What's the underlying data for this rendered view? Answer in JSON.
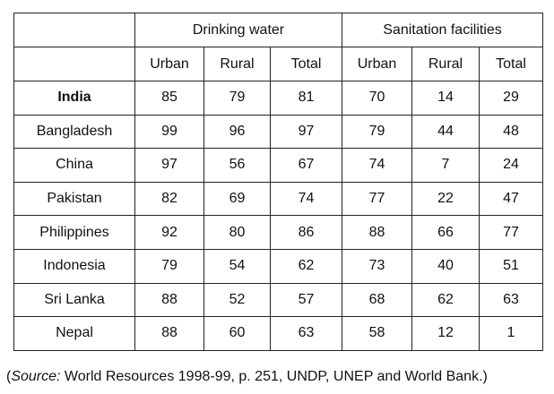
{
  "table": {
    "group_headers": [
      "Drinking water",
      "Sanitation facilities"
    ],
    "sub_headers": [
      "Urban",
      "Rural",
      "Total",
      "Urban",
      "Rural",
      "Total"
    ],
    "rows": [
      {
        "country": "India",
        "values": [
          "85",
          "79",
          "81",
          "70",
          "14",
          "29"
        ],
        "bold": true
      },
      {
        "country": "Bangladesh",
        "values": [
          "99",
          "96",
          "97",
          "79",
          "44",
          "48"
        ]
      },
      {
        "country": "China",
        "values": [
          "97",
          "56",
          "67",
          "74",
          "7",
          "24"
        ]
      },
      {
        "country": "Pakistan",
        "values": [
          "82",
          "69",
          "74",
          "77",
          "22",
          "47"
        ]
      },
      {
        "country": "Philippines",
        "values": [
          "92",
          "80",
          "86",
          "88",
          "66",
          "77"
        ]
      },
      {
        "country": "Indonesia",
        "values": [
          "79",
          "54",
          "62",
          "73",
          "40",
          "51"
        ]
      },
      {
        "country": "Sri Lanka",
        "values": [
          "88",
          "52",
          "57",
          "68",
          "62",
          "63"
        ]
      },
      {
        "country": "Nepal",
        "values": [
          "88",
          "60",
          "63",
          "58",
          "12",
          "1"
        ]
      }
    ]
  },
  "source": {
    "open": "(",
    "label": "Source:",
    "text": " World Resources 1998-99, p. 251, UNDP, UNEP and World Bank.)"
  }
}
